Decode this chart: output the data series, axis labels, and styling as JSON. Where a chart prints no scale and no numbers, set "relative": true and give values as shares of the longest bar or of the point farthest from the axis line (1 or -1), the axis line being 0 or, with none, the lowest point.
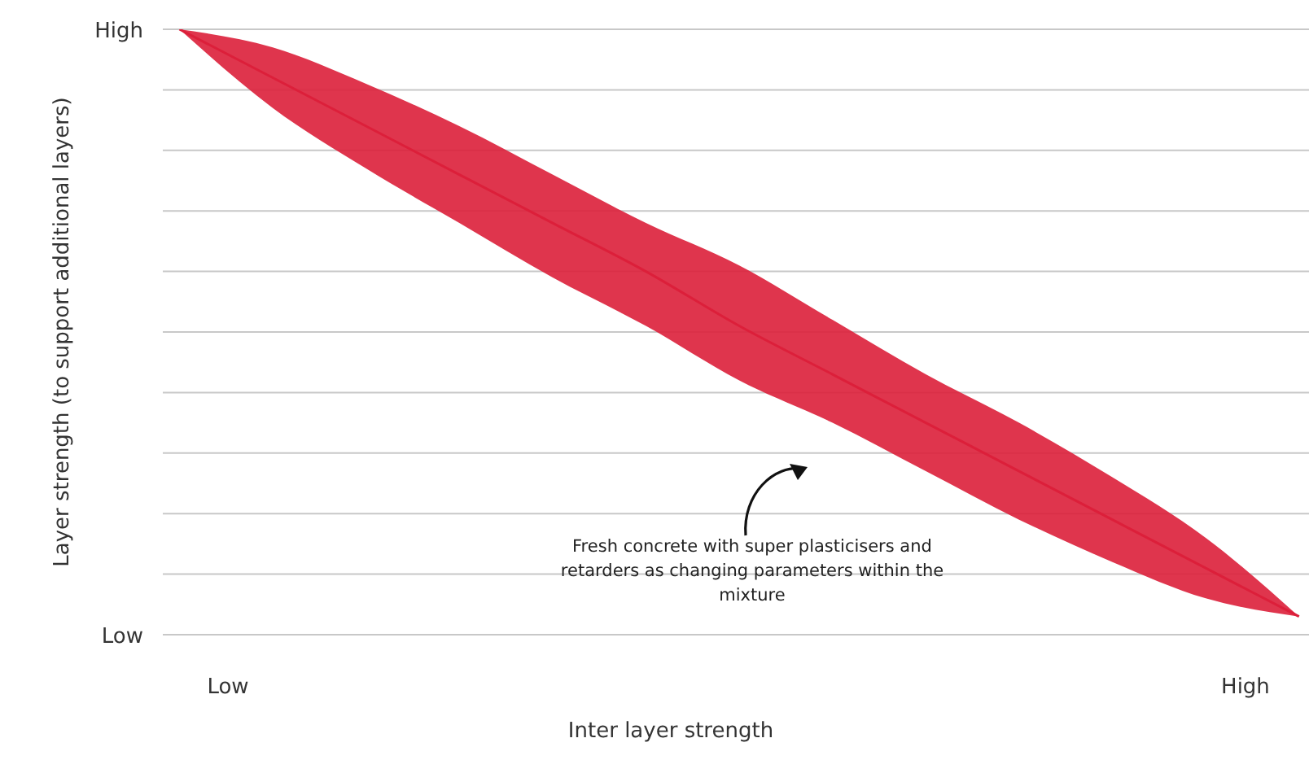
{
  "chart_data": {
    "type": "line",
    "relative": true,
    "xlabel": "Inter layer strength",
    "ylabel": "Layer strength (to support additional layers)",
    "categories": [
      null,
      null,
      null,
      null,
      null,
      null,
      null,
      null,
      null,
      null,
      null,
      null,
      null
    ],
    "series": [
      {
        "color": "#dc1f3a",
        "values": [
          1.0,
          0.92,
          0.84,
          0.76,
          0.68,
          0.6,
          0.51,
          0.43,
          0.35,
          0.27,
          0.19,
          0.11,
          0.03
        ],
        "lower": [
          1.0,
          0.87,
          0.77,
          0.68,
          0.59,
          0.51,
          0.42,
          0.35,
          0.27,
          0.19,
          0.12,
          0.06,
          0.03
        ],
        "upper": [
          1.0,
          0.97,
          0.91,
          0.84,
          0.76,
          0.68,
          0.61,
          0.52,
          0.43,
          0.35,
          0.26,
          0.16,
          0.03
        ]
      }
    ],
    "grid": "y",
    "annotations": [
      "Low",
      "High",
      "Low",
      "High",
      "Fresh concrete with super plasticisers and retarders as changing parameters within the mixture"
    ]
  }
}
